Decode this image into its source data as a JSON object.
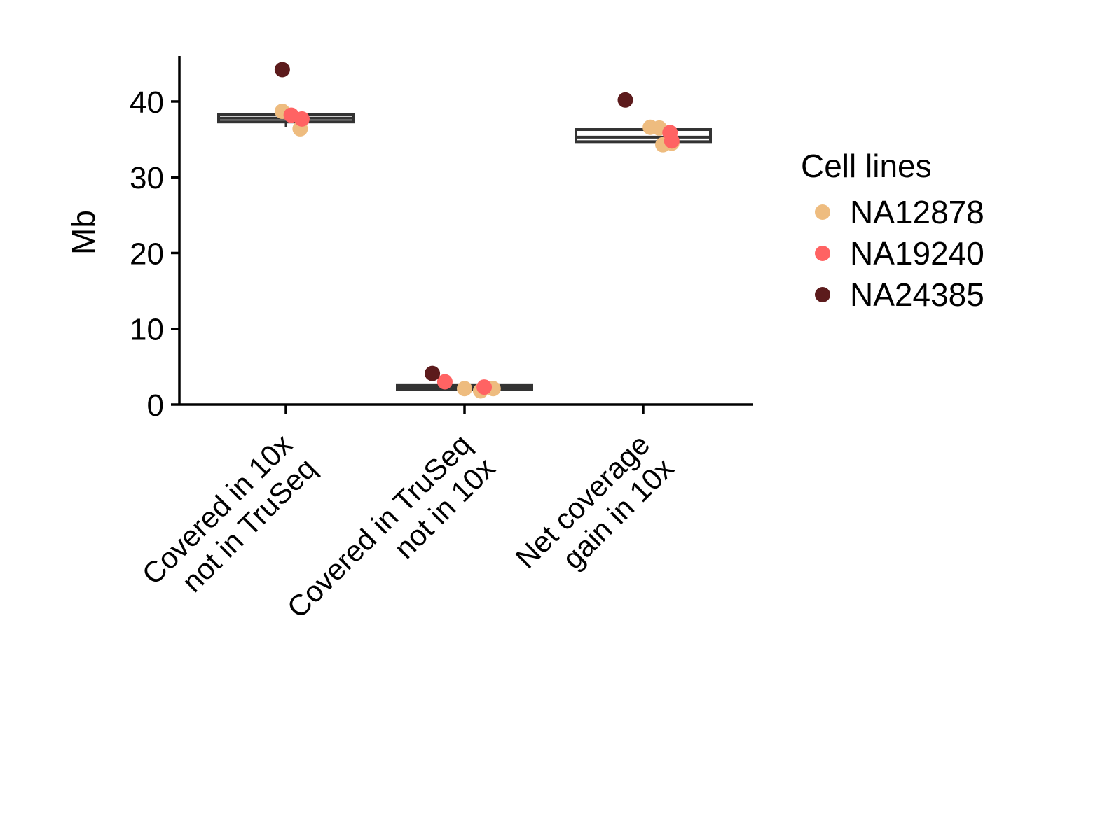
{
  "chart_data": {
    "type": "boxplot",
    "title": "",
    "xlabel": "",
    "ylabel": "Mb",
    "ylim": [
      0,
      46
    ],
    "yticks": [
      0,
      10,
      20,
      30,
      40
    ],
    "grid": false,
    "legend_position": "right",
    "legend_title": "Cell lines",
    "categories": [
      {
        "lines": [
          "Covered in 10x",
          "not in TruSeq"
        ]
      },
      {
        "lines": [
          "Covered in TruSeq",
          "not in 10x"
        ]
      },
      {
        "lines": [
          "Net coverage",
          "gain in 10x"
        ]
      }
    ],
    "boxes": [
      {
        "q1": 37.3,
        "median": 37.8,
        "q3": 38.3,
        "whisker_low": 36.6,
        "whisker_high": 38.3
      },
      {
        "q1": 2.0,
        "median": 2.3,
        "q3": 2.6,
        "whisker_low": 2.0,
        "whisker_high": 2.6
      },
      {
        "q1": 34.7,
        "median": 35.3,
        "q3": 36.3,
        "whisker_low": 34.7,
        "whisker_high": 36.3
      }
    ],
    "series": [
      {
        "name": "NA12878",
        "color": "#EEBC7F",
        "points": [
          {
            "cat": 0,
            "jitter": -0.02,
            "y": 38.7
          },
          {
            "cat": 0,
            "jitter": 0.08,
            "y": 36.4
          },
          {
            "cat": 1,
            "jitter": 0.0,
            "y": 2.1
          },
          {
            "cat": 1,
            "jitter": 0.09,
            "y": 1.8
          },
          {
            "cat": 1,
            "jitter": 0.16,
            "y": 2.1
          },
          {
            "cat": 2,
            "jitter": 0.04,
            "y": 36.6
          },
          {
            "cat": 2,
            "jitter": 0.09,
            "y": 36.5
          },
          {
            "cat": 2,
            "jitter": 0.11,
            "y": 34.3
          },
          {
            "cat": 2,
            "jitter": 0.16,
            "y": 34.5
          }
        ]
      },
      {
        "name": "NA19240",
        "color": "#FF6363",
        "points": [
          {
            "cat": 0,
            "jitter": 0.03,
            "y": 38.2
          },
          {
            "cat": 0,
            "jitter": 0.09,
            "y": 37.7
          },
          {
            "cat": 1,
            "jitter": -0.11,
            "y": 3.0
          },
          {
            "cat": 1,
            "jitter": 0.11,
            "y": 2.3
          },
          {
            "cat": 2,
            "jitter": 0.15,
            "y": 35.9
          },
          {
            "cat": 2,
            "jitter": 0.16,
            "y": 34.8
          }
        ]
      },
      {
        "name": "NA24385",
        "color": "#5C1B1C",
        "points": [
          {
            "cat": 0,
            "jitter": -0.02,
            "y": 44.2
          },
          {
            "cat": 1,
            "jitter": -0.18,
            "y": 4.1
          },
          {
            "cat": 2,
            "jitter": -0.1,
            "y": 40.2
          }
        ]
      }
    ]
  }
}
